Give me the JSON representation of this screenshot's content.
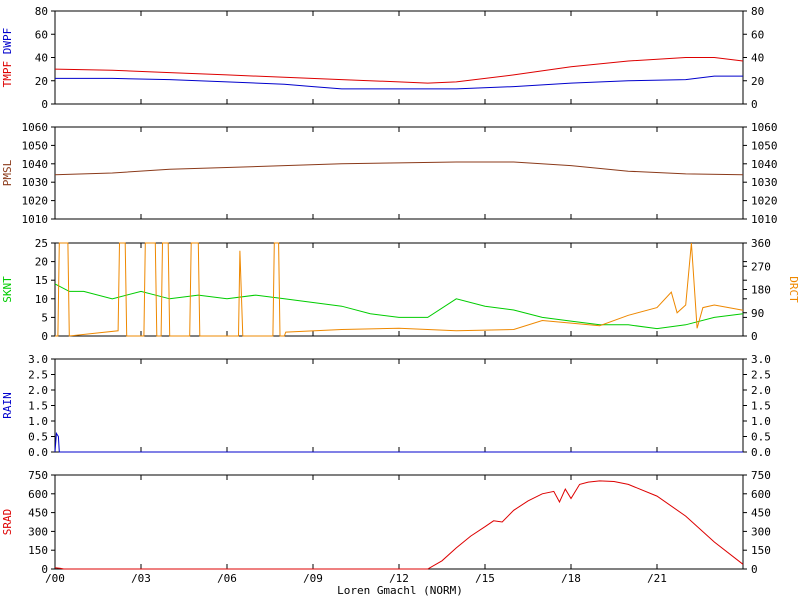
{
  "footer": {
    "station_label": "Loren Gmachl (NORM)"
  },
  "x_ticks": [
    "/00",
    "/03",
    "/06",
    "/09",
    "/12",
    "/15",
    "/18",
    "/21"
  ],
  "colors": {
    "tmpf": "#dd0000",
    "dwpf": "#0000cc",
    "pmsl": "#8b3a1a",
    "sknt": "#00cc00",
    "drct": "#ee8800",
    "rain": "#0000cc",
    "srad": "#dd0000"
  },
  "chart_data": [
    {
      "type": "line",
      "panel": "temperature",
      "ylabels_left": [
        {
          "text": "TMPF",
          "color": "#dd0000"
        },
        {
          "text": "DWPF",
          "color": "#0000cc"
        }
      ],
      "ylim": [
        0,
        80
      ],
      "ticks": [
        "0",
        "20",
        "40",
        "60",
        "80"
      ],
      "right_ticks": [
        "0",
        "20",
        "40",
        "60",
        "80"
      ],
      "grid": false,
      "series": [
        {
          "name": "TMPF",
          "color": "#dd0000",
          "x": [
            0,
            2,
            4,
            6,
            8,
            10,
            12,
            13,
            14,
            16,
            18,
            20,
            22,
            23,
            24
          ],
          "y": [
            30,
            29,
            27,
            25,
            23,
            21,
            19,
            18,
            19,
            25,
            32,
            37,
            40,
            40,
            37
          ]
        },
        {
          "name": "DWPF",
          "color": "#0000cc",
          "x": [
            0,
            2,
            4,
            6,
            8,
            9,
            10,
            12,
            14,
            16,
            18,
            20,
            22,
            23,
            24
          ],
          "y": [
            22,
            22,
            21,
            19,
            17,
            15,
            13,
            13,
            13,
            15,
            18,
            20,
            21,
            24,
            24
          ]
        }
      ]
    },
    {
      "type": "line",
      "panel": "pressure",
      "ylabels_left": [
        {
          "text": "PMSL",
          "color": "#8b3a1a"
        }
      ],
      "ylim": [
        1010,
        1060
      ],
      "ticks": [
        "1010",
        "1020",
        "1030",
        "1040",
        "1050",
        "1060"
      ],
      "right_ticks": [
        "1010",
        "1020",
        "1030",
        "1040",
        "1050",
        "1060"
      ],
      "grid": false,
      "series": [
        {
          "name": "PMSL",
          "color": "#8b3a1a",
          "x": [
            0,
            2,
            4,
            6,
            8,
            10,
            12,
            14,
            16,
            18,
            20,
            22,
            24
          ],
          "y": [
            1034,
            1035,
            1037,
            1038,
            1039,
            1040,
            1040.5,
            1041,
            1041,
            1039,
            1036,
            1034.5,
            1034
          ]
        }
      ]
    },
    {
      "type": "line",
      "panel": "wind",
      "ylabels_left": [
        {
          "text": "SKNT",
          "color": "#00cc00"
        }
      ],
      "ylabels_right": [
        {
          "text": "DRCT",
          "color": "#ee8800"
        }
      ],
      "ylim": [
        0,
        25
      ],
      "ylim_right": [
        0,
        360
      ],
      "ticks": [
        "0",
        "5",
        "10",
        "15",
        "20",
        "25"
      ],
      "right_ticks": [
        "0",
        "90",
        "180",
        "270",
        "360"
      ],
      "grid": false,
      "series": [
        {
          "name": "SKNT",
          "color": "#00cc00",
          "x": [
            0,
            0.5,
            1,
            2,
            3,
            4,
            5,
            6,
            7,
            8,
            9,
            10,
            11,
            12,
            13,
            14,
            15,
            16,
            17,
            18,
            19,
            20,
            21,
            22,
            23,
            24
          ],
          "y": [
            14,
            12,
            12,
            10,
            12,
            10,
            11,
            10,
            11,
            10,
            9,
            8,
            6,
            5,
            5,
            10,
            8,
            7,
            5,
            4,
            3,
            3,
            2,
            3,
            5,
            6
          ]
        },
        {
          "name": "DRCT",
          "color": "#ee8800",
          "axis": "right",
          "x": [
            0,
            0.1,
            0.15,
            0.45,
            0.5,
            2.2,
            2.25,
            2.45,
            2.5,
            3.1,
            3.15,
            3.5,
            3.55,
            3.7,
            3.75,
            3.95,
            4.0,
            4.7,
            4.75,
            5.0,
            5.05,
            6.4,
            6.45,
            6.55,
            7.6,
            7.65,
            7.8,
            7.85,
            8.0,
            8.05,
            10,
            12,
            14,
            16,
            17,
            18,
            19,
            20,
            21,
            21.5,
            21.7,
            22,
            22.2,
            22.4,
            22.6,
            23,
            23.5,
            24
          ],
          "y": [
            0,
            0,
            360,
            360,
            0,
            20,
            360,
            360,
            0,
            0,
            360,
            360,
            0,
            0,
            360,
            360,
            0,
            0,
            360,
            360,
            0,
            0,
            330,
            0,
            0,
            360,
            360,
            0,
            0,
            15,
            25,
            30,
            20,
            25,
            60,
            50,
            40,
            80,
            110,
            170,
            90,
            120,
            360,
            30,
            110,
            120,
            110,
            100
          ]
        }
      ]
    },
    {
      "type": "line",
      "panel": "rain",
      "ylabels_left": [
        {
          "text": "RAIN",
          "color": "#0000cc"
        }
      ],
      "ylim": [
        0,
        3.0
      ],
      "ticks": [
        "0.0",
        "0.5",
        "1.0",
        "1.5",
        "2.0",
        "2.5",
        "3.0"
      ],
      "right_ticks": [
        "0.0",
        "0.5",
        "1.0",
        "1.5",
        "2.0",
        "2.5",
        "3.0"
      ],
      "grid": false,
      "series": [
        {
          "name": "RAIN",
          "color": "#0000cc",
          "x": [
            0,
            0.05,
            0.12,
            0.15,
            24
          ],
          "y": [
            0,
            0.6,
            0.5,
            0,
            0
          ]
        }
      ]
    },
    {
      "type": "line",
      "panel": "solar",
      "ylabels_left": [
        {
          "text": "SRAD",
          "color": "#dd0000"
        }
      ],
      "ylim": [
        0,
        800
      ],
      "ticks": [
        "0",
        "150",
        "300",
        "450",
        "600",
        "750"
      ],
      "right_ticks": [
        "0",
        "150",
        "300",
        "450",
        "600",
        "750"
      ],
      "grid": false,
      "series": [
        {
          "name": "SRAD",
          "color": "#dd0000",
          "x": [
            0,
            0.2,
            0.3,
            13.0,
            13.5,
            14.0,
            14.5,
            15.0,
            15.3,
            15.6,
            16.0,
            16.5,
            17.0,
            17.4,
            17.6,
            17.8,
            18.0,
            18.3,
            18.6,
            19.0,
            19.5,
            20.0,
            21.0,
            22.0,
            23.0,
            24.0
          ],
          "y": [
            10,
            5,
            0,
            0,
            70,
            180,
            280,
            360,
            410,
            400,
            500,
            580,
            640,
            660,
            570,
            680,
            600,
            720,
            740,
            750,
            745,
            720,
            620,
            450,
            230,
            40
          ]
        }
      ]
    }
  ]
}
